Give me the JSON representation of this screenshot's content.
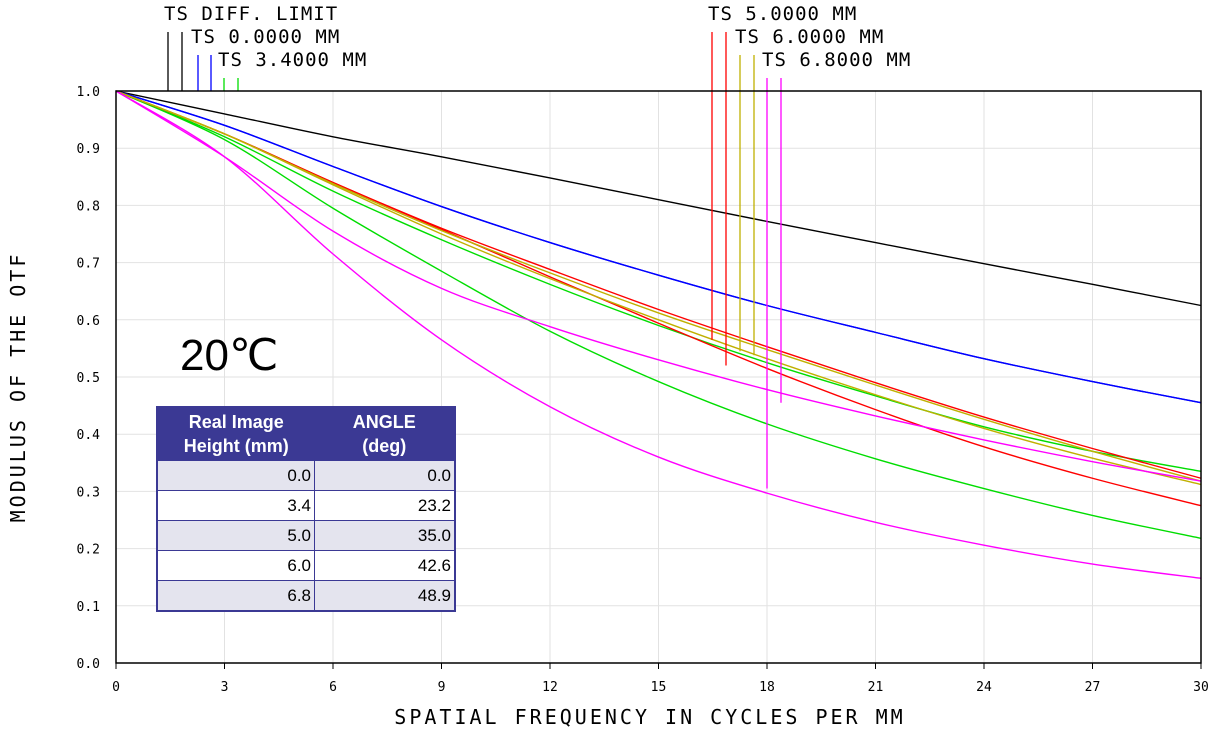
{
  "chart_data": {
    "type": "line",
    "xlabel": "SPATIAL FREQUENCY IN CYCLES PER MM",
    "ylabel": "MODULUS OF THE OTF",
    "xlim": [
      0,
      30
    ],
    "ylim": [
      0,
      1
    ],
    "x_ticks": [
      "0",
      "3",
      "6",
      "9",
      "12",
      "15",
      "18",
      "21",
      "24",
      "27",
      "30"
    ],
    "y_ticks": [
      "0.0",
      "0.1",
      "0.2",
      "0.3",
      "0.4",
      "0.5",
      "0.6",
      "0.7",
      "0.8",
      "0.9",
      "1.0"
    ],
    "grid": true,
    "x": [
      0,
      3,
      6,
      9,
      12,
      15,
      18,
      21,
      24,
      27,
      30
    ],
    "series": [
      {
        "name": "TS DIFF. LIMIT",
        "color": "#000000",
        "values": [
          1.0,
          0.96,
          0.92,
          0.885,
          0.848,
          0.81,
          0.772,
          0.735,
          0.698,
          0.662,
          0.625
        ]
      },
      {
        "name": "TS 0.0000 MM (T)",
        "color": "#0000ff",
        "values": [
          1.0,
          0.94,
          0.868,
          0.798,
          0.735,
          0.678,
          0.625,
          0.578,
          0.532,
          0.492,
          0.455
        ]
      },
      {
        "name": "TS 0.0000 MM (S)",
        "color": "#0000ff",
        "values": [
          1.0,
          0.94,
          0.868,
          0.798,
          0.735,
          0.678,
          0.625,
          0.578,
          0.532,
          0.492,
          0.455
        ]
      },
      {
        "name": "TS 3.4000 MM (T)",
        "color": "#00dd00",
        "values": [
          1.0,
          0.92,
          0.825,
          0.74,
          0.662,
          0.59,
          0.525,
          0.467,
          0.413,
          0.37,
          0.335
        ]
      },
      {
        "name": "TS 3.4000 MM (S)",
        "color": "#00dd00",
        "values": [
          1.0,
          0.915,
          0.795,
          0.685,
          0.58,
          0.492,
          0.418,
          0.357,
          0.305,
          0.258,
          0.218
        ]
      },
      {
        "name": "TS 5.0000 MM (T)",
        "color": "#ff0000",
        "values": [
          1.0,
          0.925,
          0.84,
          0.76,
          0.688,
          0.618,
          0.553,
          0.49,
          0.43,
          0.375,
          0.323
        ]
      },
      {
        "name": "TS 5.0000 MM (S)",
        "color": "#ff0000",
        "values": [
          1.0,
          0.925,
          0.84,
          0.758,
          0.675,
          0.594,
          0.515,
          0.443,
          0.378,
          0.323,
          0.275
        ]
      },
      {
        "name": "TS 6.0000 MM (T)",
        "color": "#c0b000",
        "values": [
          1.0,
          0.925,
          0.838,
          0.756,
          0.682,
          0.612,
          0.548,
          0.486,
          0.426,
          0.37,
          0.318
        ]
      },
      {
        "name": "TS 6.0000 MM (S)",
        "color": "#c0b000",
        "values": [
          1.0,
          0.925,
          0.836,
          0.75,
          0.672,
          0.6,
          0.532,
          0.469,
          0.41,
          0.358,
          0.312
        ]
      },
      {
        "name": "TS 6.8000 MM (T)",
        "color": "#ff00ff",
        "values": [
          1.0,
          0.885,
          0.755,
          0.655,
          0.588,
          0.53,
          0.478,
          0.432,
          0.39,
          0.352,
          0.318
        ]
      },
      {
        "name": "TS 6.8000 MM (S)",
        "color": "#ff00ff",
        "values": [
          1.0,
          0.885,
          0.715,
          0.565,
          0.448,
          0.36,
          0.297,
          0.246,
          0.206,
          0.173,
          0.148
        ]
      }
    ],
    "legend": [
      {
        "label": "TS DIFF. LIMIT",
        "color": "#000000",
        "end_values": [
          1.0,
          1.0
        ]
      },
      {
        "label": "TS 0.0000 MM",
        "color": "#0000ff",
        "end_values": [
          1.0,
          1.0
        ]
      },
      {
        "label": "TS 3.4000 MM",
        "color": "#00dd00",
        "end_values": [
          1.0,
          1.0
        ]
      },
      {
        "label": "TS 5.0000 MM",
        "color": "#ff0000",
        "end_values": [
          0.565,
          0.52
        ]
      },
      {
        "label": "TS 6.0000 MM",
        "color": "#c0b000",
        "end_values": [
          0.545,
          0.538
        ]
      },
      {
        "label": "TS 6.8000 MM",
        "color": "#ff00ff",
        "end_values": [
          0.305,
          0.455
        ]
      }
    ]
  },
  "annotation": {
    "temperature": "20℃"
  },
  "table": {
    "headers": [
      "Real Image\nHeight (mm)",
      "ANGLE\n(deg)"
    ],
    "rows": [
      [
        "0.0",
        "0.0"
      ],
      [
        "3.4",
        "23.2"
      ],
      [
        "5.0",
        "35.0"
      ],
      [
        "6.0",
        "42.6"
      ],
      [
        "6.8",
        "48.9"
      ]
    ]
  }
}
